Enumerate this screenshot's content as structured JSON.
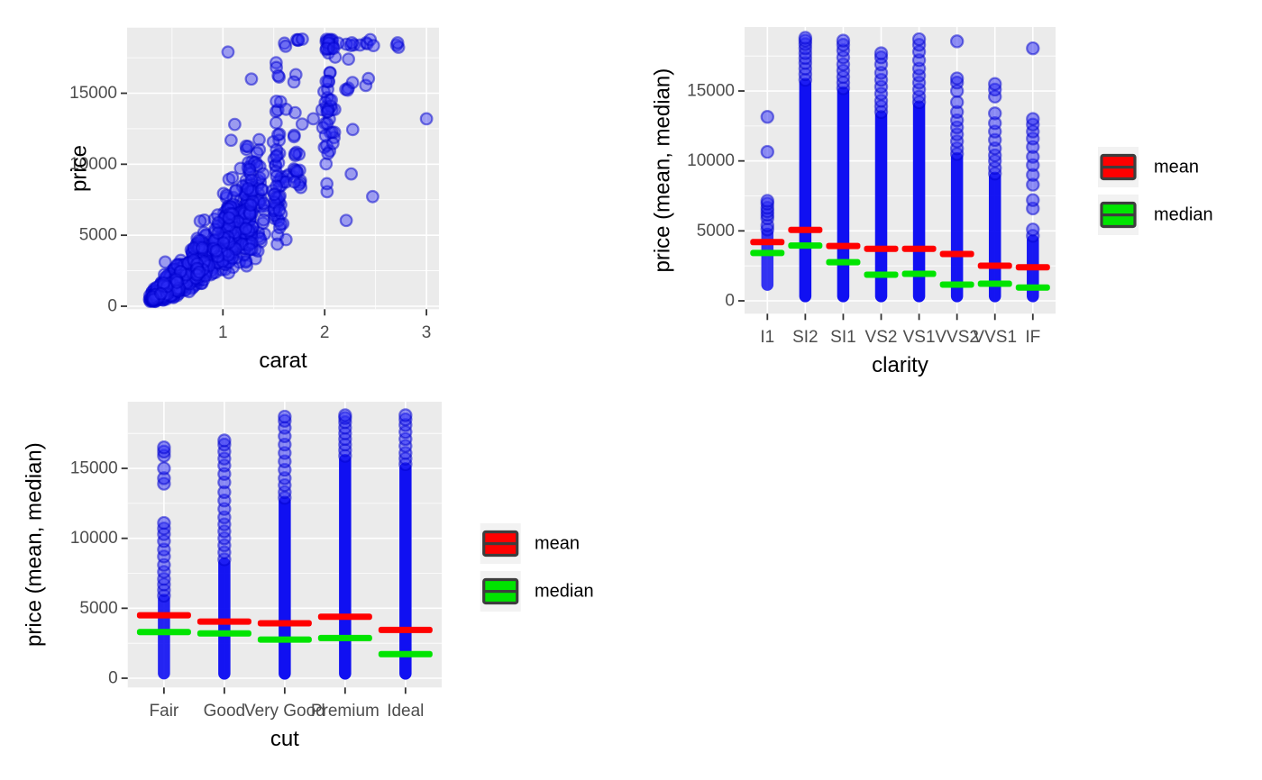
{
  "colors": {
    "page_bg": "#FFFFFF",
    "panel_bg": "#EBEBEB",
    "grid": "#FFFFFF",
    "tick_mark": "#333333",
    "tick_label": "#4D4D4D",
    "axis_title": "#000000",
    "point_blue": "#0000FF",
    "mean_red": "#FF0000",
    "median_green": "#00E400",
    "legend_key_bg": "#F2F2F2",
    "legend_key_border": "#3D3D3D",
    "legend_text": "#000000"
  },
  "legend": {
    "items": [
      {
        "label": "mean",
        "color": "#FF0000"
      },
      {
        "label": "median",
        "color": "#00E400"
      }
    ]
  },
  "chart_data": [
    {
      "id": "scatter-price-vs-carat",
      "type": "scatter",
      "title": "",
      "xlabel": "carat",
      "ylabel": "price",
      "x_ticks": [
        1,
        2,
        3
      ],
      "x_minor_ticks": [
        0.5,
        1.5,
        2.5
      ],
      "y_ticks": [
        0,
        5000,
        10000,
        15000
      ],
      "y_minor_ticks": [
        2500,
        7500,
        12500,
        17500
      ],
      "xlim": [
        0.06,
        3.12
      ],
      "ylim": [
        -210,
        19620
      ],
      "point_alpha": 0.5,
      "n_points": 1500,
      "point_generator": {
        "seed": 123457,
        "clusters": [
          [
            0.3,
            16
          ],
          [
            0.31,
            9
          ],
          [
            0.4,
            12
          ],
          [
            0.41,
            6
          ],
          [
            0.5,
            11
          ],
          [
            0.51,
            5
          ],
          [
            0.6,
            4
          ],
          [
            0.7,
            9
          ],
          [
            0.71,
            4
          ],
          [
            0.8,
            3
          ],
          [
            0.9,
            4
          ],
          [
            1.0,
            7
          ],
          [
            1.01,
            5
          ],
          [
            1.1,
            3
          ],
          [
            1.2,
            5
          ],
          [
            1.25,
            3
          ],
          [
            1.35,
            2
          ],
          [
            1.5,
            4
          ],
          [
            1.51,
            3
          ],
          [
            1.7,
            2
          ],
          [
            2.0,
            3
          ],
          [
            2.01,
            2
          ],
          [
            2.2,
            1.2
          ],
          [
            2.4,
            0.6
          ],
          [
            2.7,
            0.25
          ]
        ],
        "jitter_right": 0.045,
        "jitter_sym": 0.01,
        "uniform_frac": 0.04,
        "uniform_range": [
          0.26,
          2.35
        ],
        "log_intercept": 8.42,
        "log_slope": 1.7,
        "sigma_low": 0.27,
        "sigma_high": 0.33,
        "sigma_switch": 1.2,
        "price_min": 330,
        "price_max": 18823,
        "fold_back": 700
      },
      "outlier_points": [
        [
          3.0,
          13200
        ],
        [
          1.05,
          17900
        ],
        [
          1.28,
          16000
        ]
      ]
    },
    {
      "id": "strip-price-by-clarity",
      "type": "strip_summary",
      "title": "",
      "xlabel": "clarity",
      "ylabel": "price (mean, median)",
      "y_ticks": [
        0,
        5000,
        10000,
        15000
      ],
      "y_minor_ticks": [
        2500,
        7500,
        12500,
        17500
      ],
      "ylim": [
        -230,
        19570
      ],
      "categories": [
        "I1",
        "SI2",
        "SI1",
        "VS2",
        "VS1",
        "VVS2",
        "VVS1",
        "IF"
      ],
      "series": [
        {
          "name": "mean",
          "values": [
            4200,
            5070,
            3920,
            3720,
            3720,
            3350,
            2510,
            2400
          ]
        },
        {
          "name": "median",
          "values": [
            3420,
            3950,
            2760,
            1870,
            1930,
            1160,
            1220,
            950
          ]
        }
      ],
      "columns": [
        {
          "label": "I1",
          "core": [
            1150,
            4800
          ],
          "core_alpha": 0.82,
          "dots": [
            5100,
            5400,
            5900,
            6150,
            6400,
            6650,
            6950,
            7150,
            10650,
            13150
          ]
        },
        {
          "label": "SI2",
          "core": [
            330,
            15500
          ],
          "core_alpha": 0.97,
          "dots": [
            15800,
            16200,
            16600,
            17000,
            17350,
            17700,
            18050,
            18350,
            18600,
            18800
          ]
        },
        {
          "label": "SI1",
          "core": [
            330,
            14900
          ],
          "core_alpha": 0.97,
          "dots": [
            15200,
            15600,
            16000,
            16450,
            16900,
            17400,
            17900,
            18300,
            18600
          ]
        },
        {
          "label": "VS2",
          "core": [
            330,
            13200
          ],
          "core_alpha": 0.97,
          "dots": [
            13500,
            13900,
            14300,
            14800,
            15300,
            15800,
            16300,
            16900,
            17400,
            17700
          ]
        },
        {
          "label": "VS1",
          "core": [
            330,
            13900
          ],
          "core_alpha": 0.97,
          "dots": [
            14200,
            14600,
            15100,
            15600,
            16100,
            16600,
            17200,
            17800,
            18300,
            18700
          ]
        },
        {
          "label": "VVS2",
          "core": [
            330,
            10200
          ],
          "core_alpha": 0.95,
          "dots": [
            10500,
            10900,
            11400,
            11900,
            12400,
            12900,
            13500,
            14200,
            15000,
            15600,
            15900,
            18550
          ]
        },
        {
          "label": "VVS1",
          "core": [
            330,
            8800
          ],
          "core_alpha": 0.95,
          "dots": [
            9100,
            9500,
            10000,
            10400,
            10900,
            11500,
            12100,
            12700,
            13400,
            14600,
            15100,
            15500
          ]
        },
        {
          "label": "IF",
          "core": [
            330,
            4300
          ],
          "core_alpha": 0.93,
          "dots": [
            4650,
            5100,
            6600,
            7200,
            8300,
            9000,
            9700,
            10300,
            11000,
            11600,
            12100,
            12600,
            13000,
            18050
          ]
        }
      ]
    },
    {
      "id": "strip-price-by-cut",
      "type": "strip_summary",
      "title": "",
      "xlabel": "cut",
      "ylabel": "price (mean, median)",
      "y_ticks": [
        0,
        5000,
        10000,
        15000
      ],
      "y_minor_ticks": [
        2500,
        7500,
        12500,
        17500
      ],
      "ylim": [
        -230,
        19760
      ],
      "categories": [
        "Fair",
        "Good",
        "Very Good",
        "Premium",
        "Ideal"
      ],
      "series": [
        {
          "name": "mean",
          "values": [
            4500,
            4050,
            3930,
            4390,
            3450
          ]
        },
        {
          "name": "median",
          "values": [
            3300,
            3200,
            2760,
            2870,
            1720
          ]
        }
      ],
      "columns": [
        {
          "label": "Fair",
          "core": [
            350,
            5600
          ],
          "core_alpha": 0.88,
          "dots": [
            5900,
            6300,
            6700,
            7100,
            7600,
            8100,
            8700,
            9200,
            9800,
            10300,
            10700,
            11100,
            13900,
            14300,
            15000,
            15900,
            16200,
            16500
          ]
        },
        {
          "label": "Good",
          "core": [
            330,
            8200
          ],
          "core_alpha": 0.95,
          "dots": [
            8500,
            9000,
            9500,
            10000,
            10500,
            11000,
            11500,
            12100,
            12700,
            13300,
            14000,
            14600,
            15200,
            15700,
            16200,
            16700,
            17000
          ]
        },
        {
          "label": "Very Good",
          "core": [
            330,
            12600
          ],
          "core_alpha": 0.97,
          "dots": [
            12900,
            13300,
            13800,
            14300,
            14900,
            15500,
            16100,
            16700,
            17300,
            17900,
            18400,
            18700
          ]
        },
        {
          "label": "Premium",
          "core": [
            330,
            15600
          ],
          "core_alpha": 0.97,
          "dots": [
            15900,
            16300,
            16700,
            17100,
            17500,
            17900,
            18300,
            18600,
            18800
          ]
        },
        {
          "label": "Ideal",
          "core": [
            330,
            15000
          ],
          "core_alpha": 0.97,
          "dots": [
            15300,
            15700,
            16100,
            16600,
            17100,
            17600,
            18100,
            18500,
            18800
          ]
        }
      ]
    }
  ]
}
